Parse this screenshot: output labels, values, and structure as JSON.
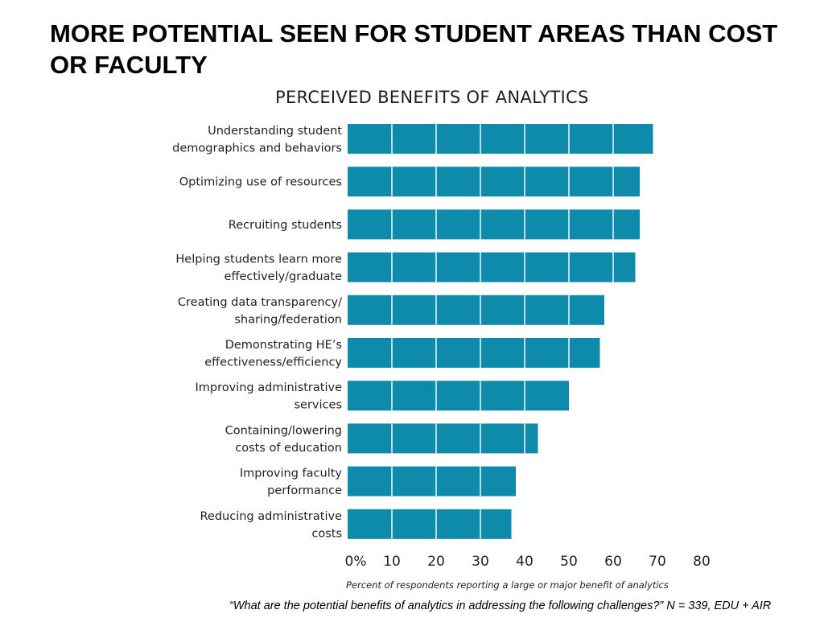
{
  "slide": {
    "title": "MORE POTENTIAL SEEN FOR STUDENT AREAS THAN COST OR FACULTY",
    "footnote": "“What are the potential benefits of analytics in addressing the following challenges?” N = 339, EDU + AIR"
  },
  "chart_data": {
    "type": "bar",
    "orientation": "horizontal",
    "title": "PERCEIVED BENEFITS OF ANALYTICS",
    "xlabel": "Percent of respondents reporting a large or major benefit of analytics",
    "ylabel": "",
    "xlim": [
      0,
      80
    ],
    "tick_labels": [
      "0%",
      "10",
      "20",
      "30",
      "40",
      "50",
      "60",
      "70",
      "80"
    ],
    "grid": true,
    "categories": [
      [
        "Understanding student",
        "demographics and behaviors"
      ],
      [
        "Optimizing use of resources"
      ],
      [
        "Recruiting students"
      ],
      [
        "Helping students learn more",
        "effectively/graduate"
      ],
      [
        "Creating data transparency/",
        "sharing/federation"
      ],
      [
        "Demonstrating HE’s",
        "effectiveness/efficiency"
      ],
      [
        "Improving administrative",
        "services"
      ],
      [
        "Containing/lowering",
        "costs of education"
      ],
      [
        "Improving faculty",
        "performance"
      ],
      [
        "Reducing administrative",
        "costs"
      ]
    ],
    "values": [
      69,
      66,
      66,
      65,
      58,
      57,
      50,
      43,
      38,
      37
    ],
    "colors": {
      "bar": "#0e8bab",
      "gridline": "#ffffff",
      "text": "#231f20"
    }
  }
}
